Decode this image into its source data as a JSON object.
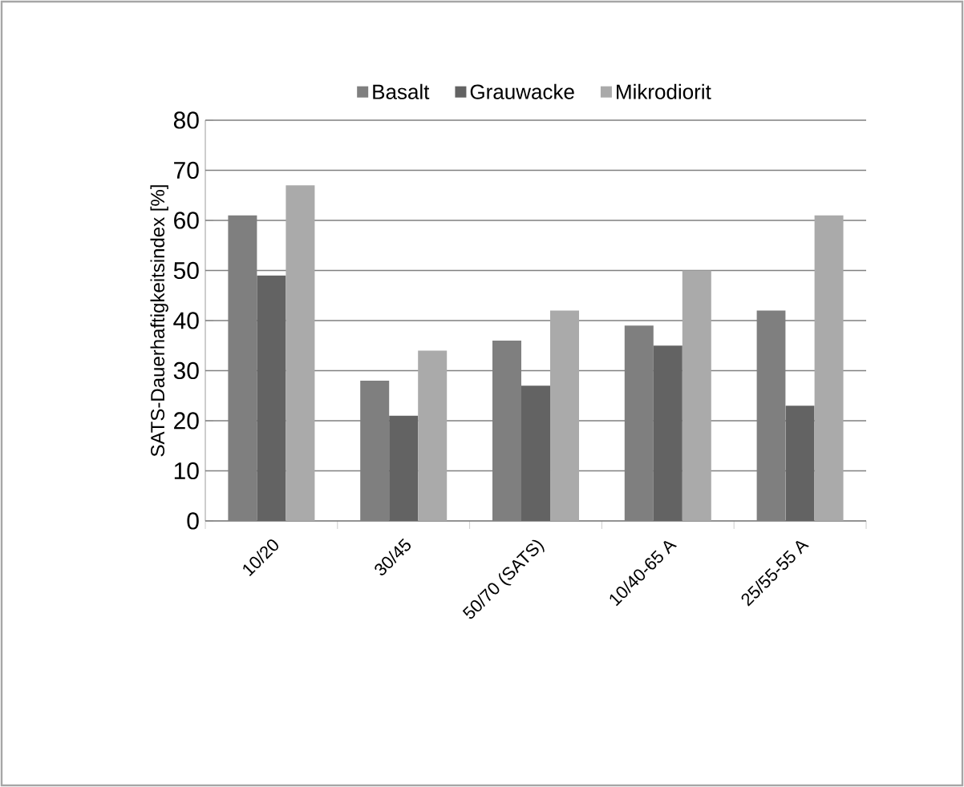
{
  "chart_data": {
    "type": "bar",
    "ylabel": "SATS-Dauerhaftigkeitsindex [%]",
    "categories": [
      "10/20",
      "30/45",
      "50/70 (SATS)",
      "10/40-65 A",
      "25/55-55 A"
    ],
    "series": [
      {
        "name": "Basalt",
        "color": "#7f7f7f",
        "values": [
          61,
          28,
          36,
          39,
          42
        ]
      },
      {
        "name": "Grauwacke",
        "color": "#636363",
        "values": [
          49,
          21,
          27,
          35,
          23
        ]
      },
      {
        "name": "Mikrodiorit",
        "color": "#aaaaaa",
        "values": [
          67,
          34,
          42,
          50,
          61
        ]
      }
    ],
    "ylim": [
      0,
      80
    ],
    "yticks": [
      0,
      10,
      20,
      30,
      40,
      50,
      60,
      70,
      80
    ],
    "grid": "y",
    "legend": "top"
  }
}
